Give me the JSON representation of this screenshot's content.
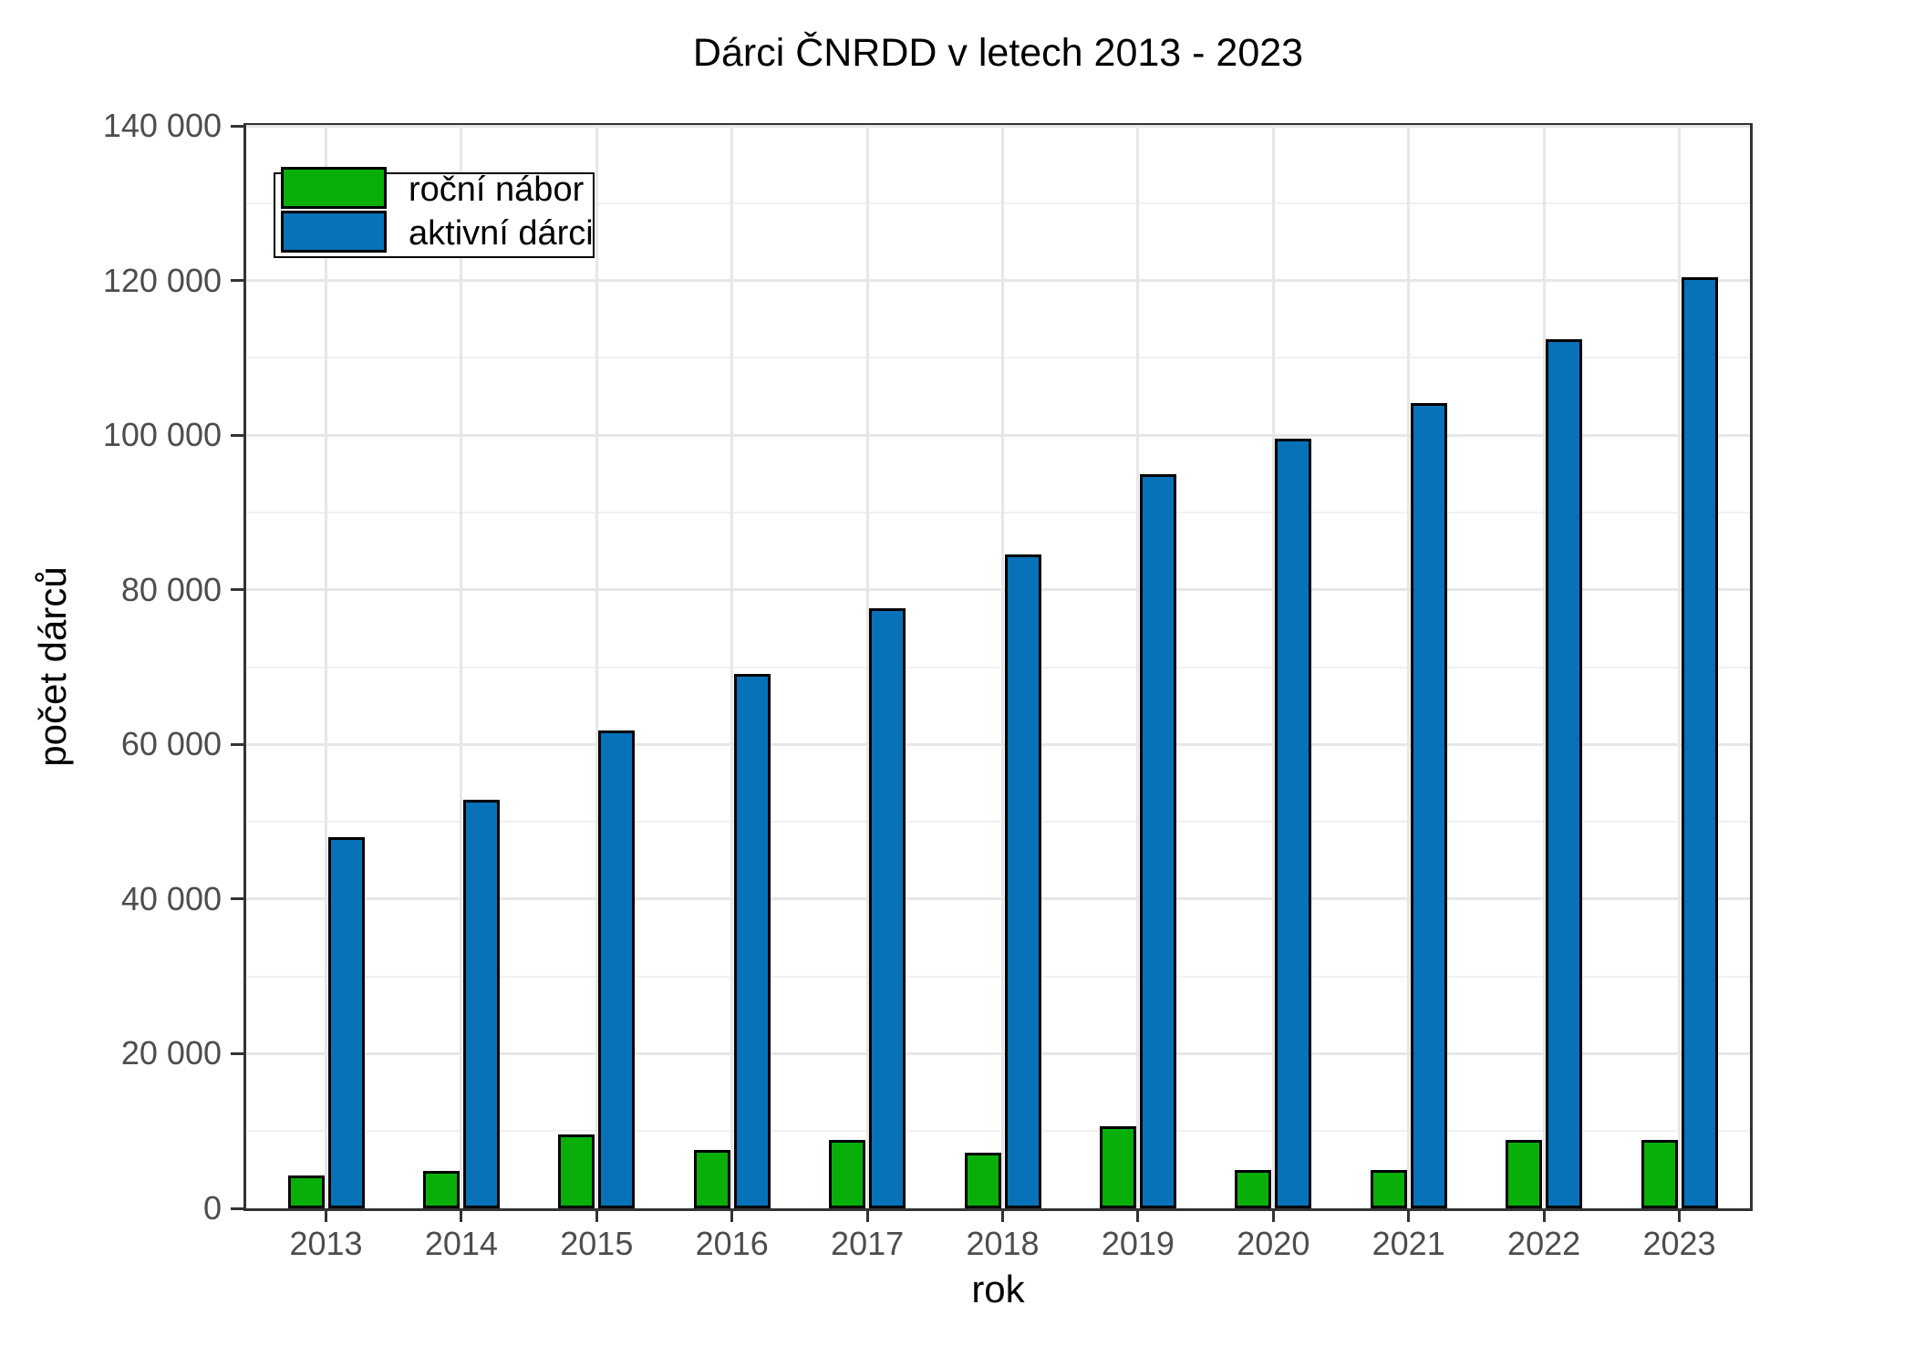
{
  "chart_data": {
    "type": "bar",
    "title": "Dárci ČNRDD v letech 2013 - 2023",
    "xlabel": "rok",
    "ylabel": "počet dárců",
    "categories": [
      "2013",
      "2014",
      "2015",
      "2016",
      "2017",
      "2018",
      "2019",
      "2020",
      "2021",
      "2022",
      "2023"
    ],
    "series": [
      {
        "name": "roční nábor",
        "color": "#08af08",
        "values": [
          4200,
          4800,
          9500,
          7500,
          8800,
          7200,
          10600,
          5000,
          4900,
          8800,
          8900
        ]
      },
      {
        "name": "aktivní dárci",
        "color": "#0772b8",
        "values": [
          48000,
          52800,
          61800,
          69100,
          77600,
          84600,
          95000,
          99500,
          104100,
          112400,
          120400
        ]
      }
    ],
    "ylim": [
      0,
      140000
    ],
    "ytick_values": [
      0,
      20000,
      40000,
      60000,
      80000,
      100000,
      120000,
      140000
    ],
    "ytick_labels": [
      "0",
      "20 000",
      "40 000",
      "60 000",
      "80 000",
      "100 000",
      "120 000",
      "140 000"
    ],
    "yminor_values": [
      10000,
      30000,
      50000,
      70000,
      90000,
      110000,
      130000
    ],
    "grid": "on",
    "legend_position": "top-left"
  },
  "colors": {
    "grid_major": "#e7e7e7",
    "grid_minor": "#f1f1f1",
    "axis_border": "#333333",
    "tick_label": "#4d4d4d",
    "bar_outline": "#000000",
    "panel_background": "#ffffff"
  }
}
